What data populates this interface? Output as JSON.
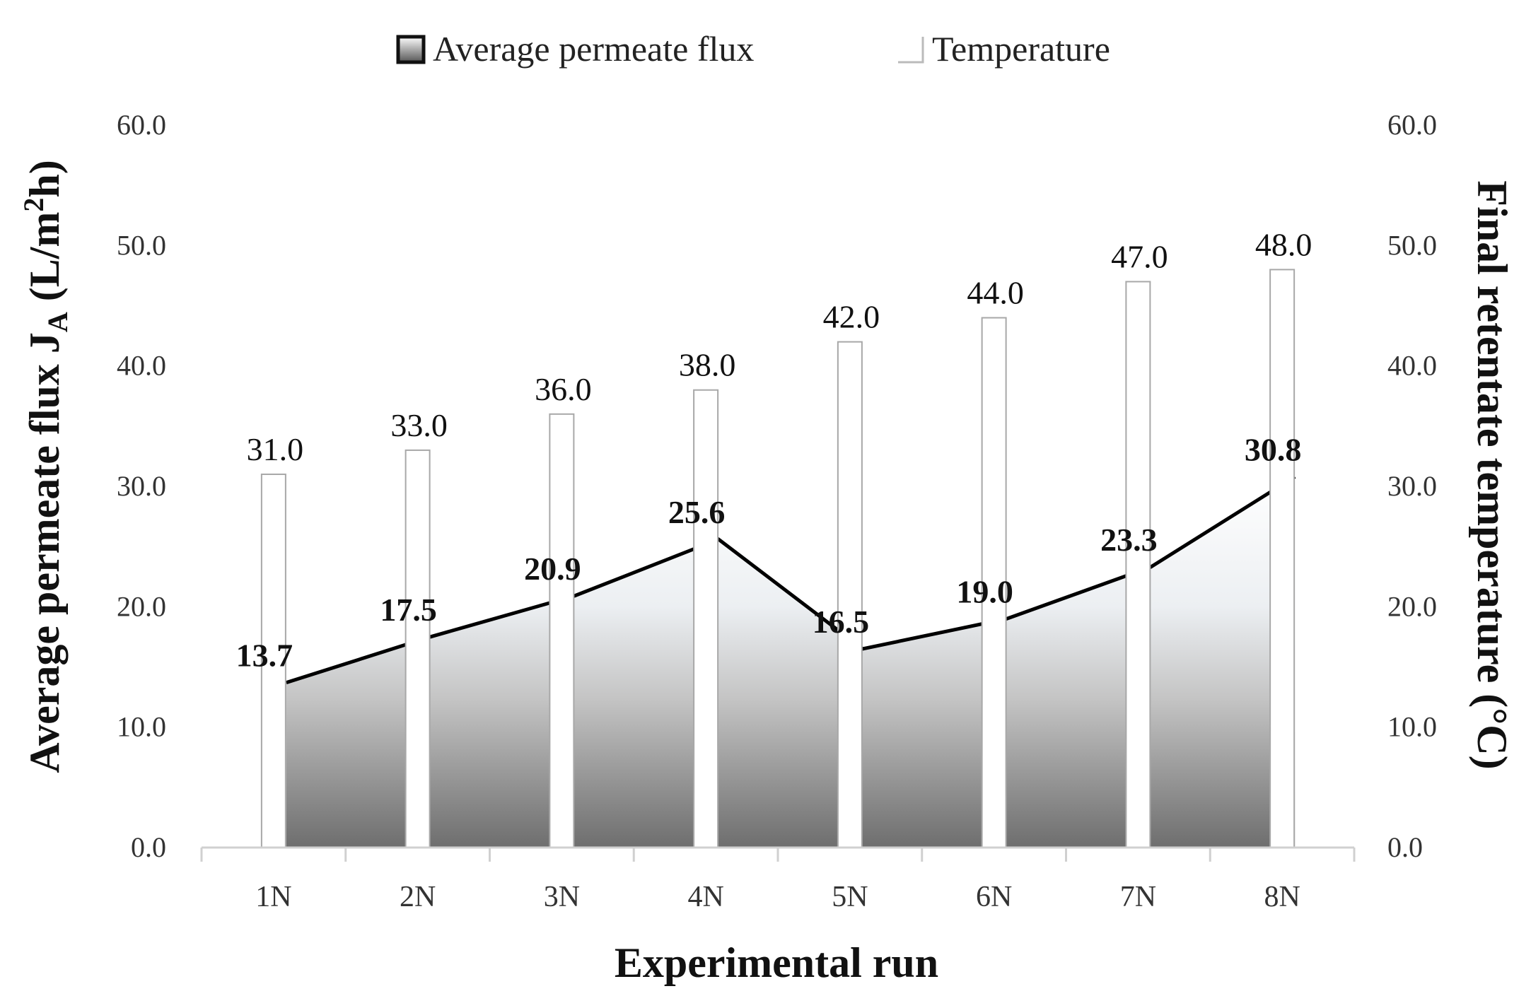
{
  "chart_data": {
    "type": "bar+area",
    "categories": [
      "1N",
      "2N",
      "3N",
      "4N",
      "5N",
      "6N",
      "7N",
      "8N"
    ],
    "series": [
      {
        "name": "Average permeate flux",
        "chart_type": "area",
        "axis": "left",
        "values": [
          13.7,
          17.5,
          20.9,
          25.6,
          16.5,
          19.0,
          23.3,
          30.8
        ],
        "labels": [
          "13.7",
          "17.5",
          "20.9",
          "25.6",
          "16.5",
          "19.0",
          "23.3",
          "30.8"
        ],
        "color": "#000000"
      },
      {
        "name": "Temperature",
        "chart_type": "bar",
        "axis": "right",
        "values": [
          31.0,
          33.0,
          36.0,
          38.0,
          42.0,
          44.0,
          47.0,
          48.0
        ],
        "labels": [
          "31.0",
          "33.0",
          "36.0",
          "38.0",
          "42.0",
          "44.0",
          "47.0",
          "48.0"
        ],
        "color": "#ffffff"
      }
    ],
    "xlabel": "Experimental run",
    "ylabel_left": {
      "main": "Average permeate flux J",
      "sub": "A",
      "unit_open": " (L/m",
      "sup": "2",
      "unit_close": "h)"
    },
    "ylabel_right": "Final retentate temperature (°C)",
    "ylim_left": [
      0,
      60
    ],
    "ylim_right": [
      0,
      60
    ],
    "yticks_left": [
      "0.0",
      "10.0",
      "20.0",
      "30.0",
      "40.0",
      "50.0",
      "60.0"
    ],
    "yticks_right": [
      "0.0",
      "10.0",
      "20.0",
      "30.0",
      "40.0",
      "50.0",
      "60.0"
    ],
    "legend": [
      "Average permeate flux",
      "Temperature"
    ],
    "legend_position": "top-center",
    "grid": false
  }
}
